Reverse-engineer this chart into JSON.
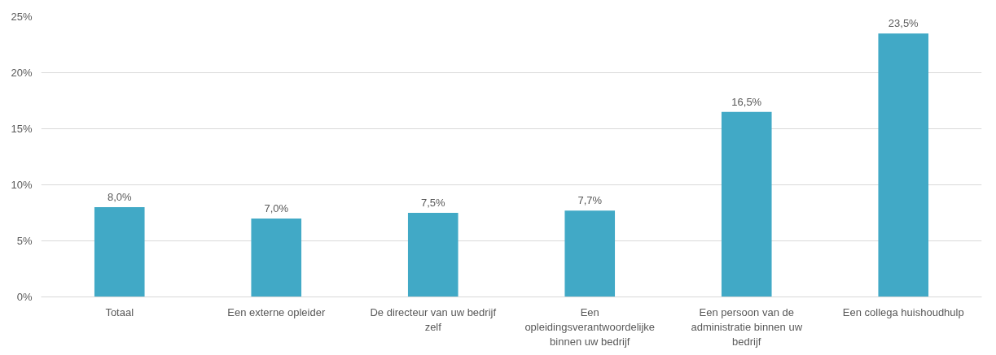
{
  "chart_data": {
    "type": "bar",
    "categories": [
      "Totaal",
      "Een externe opleider",
      "De directeur van uw bedrijf zelf",
      "Een opleidingsverantwoordelijke binnen uw bedrijf",
      "Een persoon van de administratie binnen uw bedrijf",
      "Een collega huishoudhulp"
    ],
    "values": [
      8.0,
      7.0,
      7.5,
      7.7,
      16.5,
      23.5
    ],
    "value_labels": [
      "8,0%",
      "7,0%",
      "7,5%",
      "7,7%",
      "16,5%",
      "23,5%"
    ],
    "color": "#41a9c6",
    "ylim": [
      0,
      25
    ],
    "yticks": [
      {
        "value": 0,
        "label": "0%"
      },
      {
        "value": 5,
        "label": "5%"
      },
      {
        "value": 10,
        "label": "10%"
      },
      {
        "value": 15,
        "label": "15%"
      },
      {
        "value": 20,
        "label": "20%"
      },
      {
        "value": 25,
        "label": "25%"
      }
    ],
    "grid": "y"
  }
}
